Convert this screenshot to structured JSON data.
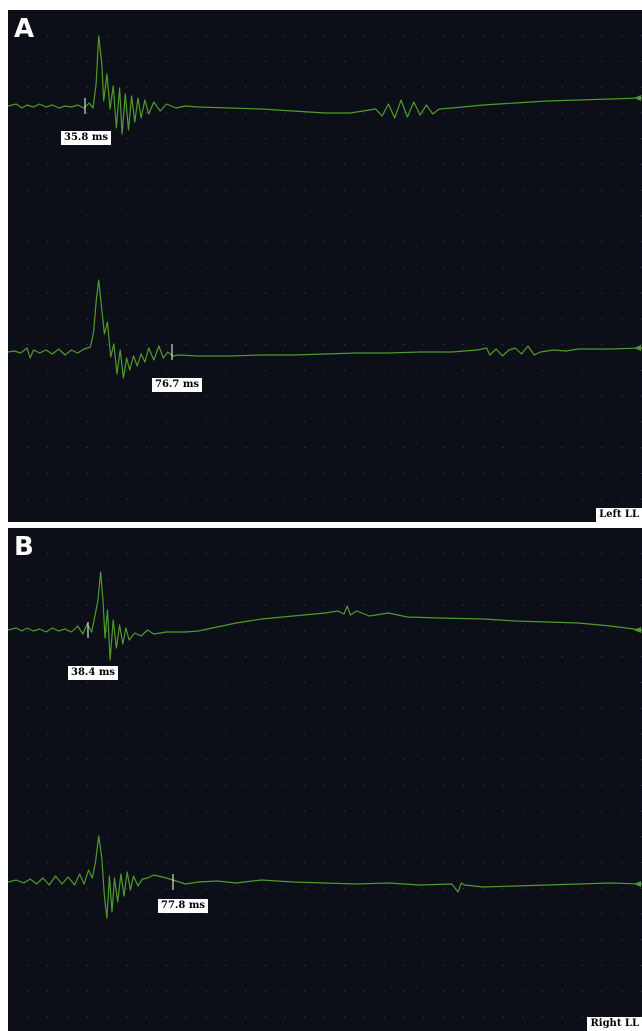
{
  "chart_data": [
    {
      "type": "line",
      "panel_label": "A",
      "corner_label": "Left LL",
      "grid": true,
      "colors": {
        "trace": "#4f9a2c",
        "background": "#0c0f18",
        "grid_dot": "#2f3a4f",
        "label_bg": "#ffffff"
      },
      "traces": [
        {
          "name": "",
          "marker": {
            "label": "35.8 ms"
          },
          "waveform": [
            [
              0,
              0
            ],
            [
              0.013,
              2
            ],
            [
              0.022,
              -2
            ],
            [
              0.03,
              1
            ],
            [
              0.04,
              -1
            ],
            [
              0.05,
              2
            ],
            [
              0.06,
              -1
            ],
            [
              0.07,
              1
            ],
            [
              0.08,
              -2
            ],
            [
              0.09,
              0
            ],
            [
              0.1,
              -1
            ],
            [
              0.11,
              1
            ],
            [
              0.12,
              -2
            ],
            [
              0.128,
              3
            ],
            [
              0.134,
              -2
            ],
            [
              0.139,
              22
            ],
            [
              0.143,
              70
            ],
            [
              0.148,
              42
            ],
            [
              0.151,
              5
            ],
            [
              0.156,
              32
            ],
            [
              0.161,
              -3
            ],
            [
              0.166,
              20
            ],
            [
              0.171,
              -22
            ],
            [
              0.176,
              18
            ],
            [
              0.18,
              -28
            ],
            [
              0.185,
              12
            ],
            [
              0.19,
              -24
            ],
            [
              0.195,
              10
            ],
            [
              0.2,
              -16
            ],
            [
              0.205,
              8
            ],
            [
              0.21,
              -12
            ],
            [
              0.216,
              6
            ],
            [
              0.222,
              -8
            ],
            [
              0.23,
              4
            ],
            [
              0.24,
              -5
            ],
            [
              0.25,
              2
            ],
            [
              0.265,
              -2
            ],
            [
              0.28,
              0
            ],
            [
              0.3,
              -1
            ],
            [
              0.35,
              -2
            ],
            [
              0.4,
              -3
            ],
            [
              0.45,
              -5
            ],
            [
              0.5,
              -7
            ],
            [
              0.54,
              -7
            ],
            [
              0.56,
              -5
            ],
            [
              0.58,
              -3
            ],
            [
              0.59,
              -10
            ],
            [
              0.6,
              2
            ],
            [
              0.61,
              -12
            ],
            [
              0.62,
              6
            ],
            [
              0.63,
              -11
            ],
            [
              0.64,
              4
            ],
            [
              0.65,
              -9
            ],
            [
              0.66,
              1
            ],
            [
              0.67,
              -8
            ],
            [
              0.68,
              -3
            ],
            [
              0.7,
              -2
            ],
            [
              0.75,
              1
            ],
            [
              0.8,
              3
            ],
            [
              0.85,
              5
            ],
            [
              0.9,
              6
            ],
            [
              0.95,
              7
            ],
            [
              1.0,
              8
            ]
          ]
        },
        {
          "name": "",
          "marker": {
            "label": "76.7 ms"
          },
          "waveform": [
            [
              0,
              0
            ],
            [
              0.01,
              1
            ],
            [
              0.02,
              -1
            ],
            [
              0.03,
              4
            ],
            [
              0.035,
              -6
            ],
            [
              0.04,
              2
            ],
            [
              0.05,
              -1
            ],
            [
              0.06,
              2
            ],
            [
              0.07,
              -2
            ],
            [
              0.08,
              3
            ],
            [
              0.09,
              -3
            ],
            [
              0.1,
              2
            ],
            [
              0.11,
              -1
            ],
            [
              0.12,
              3
            ],
            [
              0.13,
              5
            ],
            [
              0.135,
              20
            ],
            [
              0.139,
              50
            ],
            [
              0.143,
              72
            ],
            [
              0.147,
              48
            ],
            [
              0.152,
              18
            ],
            [
              0.157,
              30
            ],
            [
              0.162,
              -5
            ],
            [
              0.167,
              8
            ],
            [
              0.172,
              -22
            ],
            [
              0.177,
              2
            ],
            [
              0.182,
              -26
            ],
            [
              0.187,
              -6
            ],
            [
              0.192,
              -18
            ],
            [
              0.198,
              -4
            ],
            [
              0.204,
              -14
            ],
            [
              0.21,
              -2
            ],
            [
              0.216,
              -10
            ],
            [
              0.222,
              4
            ],
            [
              0.23,
              -8
            ],
            [
              0.238,
              6
            ],
            [
              0.245,
              -6
            ],
            [
              0.252,
              0
            ],
            [
              0.26,
              -4
            ],
            [
              0.27,
              -3
            ],
            [
              0.3,
              -4
            ],
            [
              0.35,
              -4
            ],
            [
              0.4,
              -3
            ],
            [
              0.45,
              -3
            ],
            [
              0.5,
              -2
            ],
            [
              0.55,
              -1
            ],
            [
              0.6,
              -1
            ],
            [
              0.65,
              0
            ],
            [
              0.7,
              0
            ],
            [
              0.74,
              2
            ],
            [
              0.755,
              4
            ],
            [
              0.76,
              -3
            ],
            [
              0.77,
              3
            ],
            [
              0.78,
              -4
            ],
            [
              0.79,
              2
            ],
            [
              0.8,
              4
            ],
            [
              0.81,
              -2
            ],
            [
              0.82,
              6
            ],
            [
              0.83,
              -3
            ],
            [
              0.84,
              0
            ],
            [
              0.86,
              2
            ],
            [
              0.88,
              1
            ],
            [
              0.9,
              3
            ],
            [
              0.95,
              3
            ],
            [
              1.0,
              4
            ]
          ]
        }
      ]
    },
    {
      "type": "line",
      "panel_label": "B",
      "corner_label": "Right LL",
      "grid": true,
      "colors": {
        "trace": "#4f9a2c",
        "background": "#0c0f18",
        "grid_dot": "#2f3a4f",
        "label_bg": "#ffffff"
      },
      "traces": [
        {
          "name": "",
          "marker": {
            "label": "38.4 ms"
          },
          "waveform": [
            [
              0,
              0
            ],
            [
              0.013,
              2
            ],
            [
              0.022,
              -1
            ],
            [
              0.03,
              2
            ],
            [
              0.04,
              -1
            ],
            [
              0.05,
              1
            ],
            [
              0.06,
              -2
            ],
            [
              0.07,
              2
            ],
            [
              0.08,
              -1
            ],
            [
              0.09,
              1
            ],
            [
              0.1,
              -2
            ],
            [
              0.11,
              4
            ],
            [
              0.118,
              -4
            ],
            [
              0.125,
              6
            ],
            [
              0.132,
              -2
            ],
            [
              0.137,
              14
            ],
            [
              0.142,
              30
            ],
            [
              0.146,
              58
            ],
            [
              0.15,
              28
            ],
            [
              0.153,
              -8
            ],
            [
              0.157,
              20
            ],
            [
              0.161,
              -30
            ],
            [
              0.166,
              10
            ],
            [
              0.171,
              -18
            ],
            [
              0.176,
              5
            ],
            [
              0.181,
              -14
            ],
            [
              0.186,
              2
            ],
            [
              0.191,
              -10
            ],
            [
              0.2,
              -3
            ],
            [
              0.21,
              -6
            ],
            [
              0.22,
              0
            ],
            [
              0.23,
              -4
            ],
            [
              0.25,
              -2
            ],
            [
              0.28,
              -2
            ],
            [
              0.3,
              -1
            ],
            [
              0.33,
              3
            ],
            [
              0.36,
              7
            ],
            [
              0.4,
              11
            ],
            [
              0.45,
              14
            ],
            [
              0.5,
              17
            ],
            [
              0.52,
              19
            ],
            [
              0.53,
              16
            ],
            [
              0.535,
              24
            ],
            [
              0.54,
              15
            ],
            [
              0.55,
              19
            ],
            [
              0.57,
              14
            ],
            [
              0.6,
              17
            ],
            [
              0.63,
              13
            ],
            [
              0.68,
              12
            ],
            [
              0.75,
              11
            ],
            [
              0.8,
              9
            ],
            [
              0.85,
              8
            ],
            [
              0.9,
              7
            ],
            [
              0.95,
              4
            ],
            [
              1.0,
              0
            ]
          ]
        },
        {
          "name": "",
          "marker": {
            "label": "77.8 ms"
          },
          "waveform": [
            [
              0,
              0
            ],
            [
              0.013,
              2
            ],
            [
              0.025,
              -1
            ],
            [
              0.035,
              3
            ],
            [
              0.045,
              -2
            ],
            [
              0.055,
              4
            ],
            [
              0.065,
              -3
            ],
            [
              0.075,
              6
            ],
            [
              0.085,
              -2
            ],
            [
              0.095,
              5
            ],
            [
              0.105,
              -3
            ],
            [
              0.113,
              8
            ],
            [
              0.12,
              -2
            ],
            [
              0.127,
              12
            ],
            [
              0.133,
              4
            ],
            [
              0.138,
              20
            ],
            [
              0.143,
              46
            ],
            [
              0.148,
              24
            ],
            [
              0.152,
              -14
            ],
            [
              0.156,
              -36
            ],
            [
              0.16,
              6
            ],
            [
              0.164,
              -30
            ],
            [
              0.168,
              4
            ],
            [
              0.173,
              -20
            ],
            [
              0.178,
              8
            ],
            [
              0.183,
              -14
            ],
            [
              0.188,
              10
            ],
            [
              0.193,
              -8
            ],
            [
              0.198,
              6
            ],
            [
              0.205,
              -4
            ],
            [
              0.212,
              3
            ],
            [
              0.22,
              4
            ],
            [
              0.23,
              7
            ],
            [
              0.25,
              4
            ],
            [
              0.27,
              0
            ],
            [
              0.28,
              -2
            ],
            [
              0.3,
              0
            ],
            [
              0.33,
              1
            ],
            [
              0.36,
              -1
            ],
            [
              0.4,
              2
            ],
            [
              0.45,
              0
            ],
            [
              0.5,
              -1
            ],
            [
              0.55,
              -2
            ],
            [
              0.6,
              -1
            ],
            [
              0.65,
              -3
            ],
            [
              0.7,
              -2
            ],
            [
              0.71,
              -10
            ],
            [
              0.715,
              -1
            ],
            [
              0.72,
              -3
            ],
            [
              0.75,
              -5
            ],
            [
              0.8,
              -4
            ],
            [
              0.85,
              -3
            ],
            [
              0.9,
              -2
            ],
            [
              0.95,
              -1
            ],
            [
              1.0,
              -2
            ]
          ]
        }
      ]
    }
  ]
}
